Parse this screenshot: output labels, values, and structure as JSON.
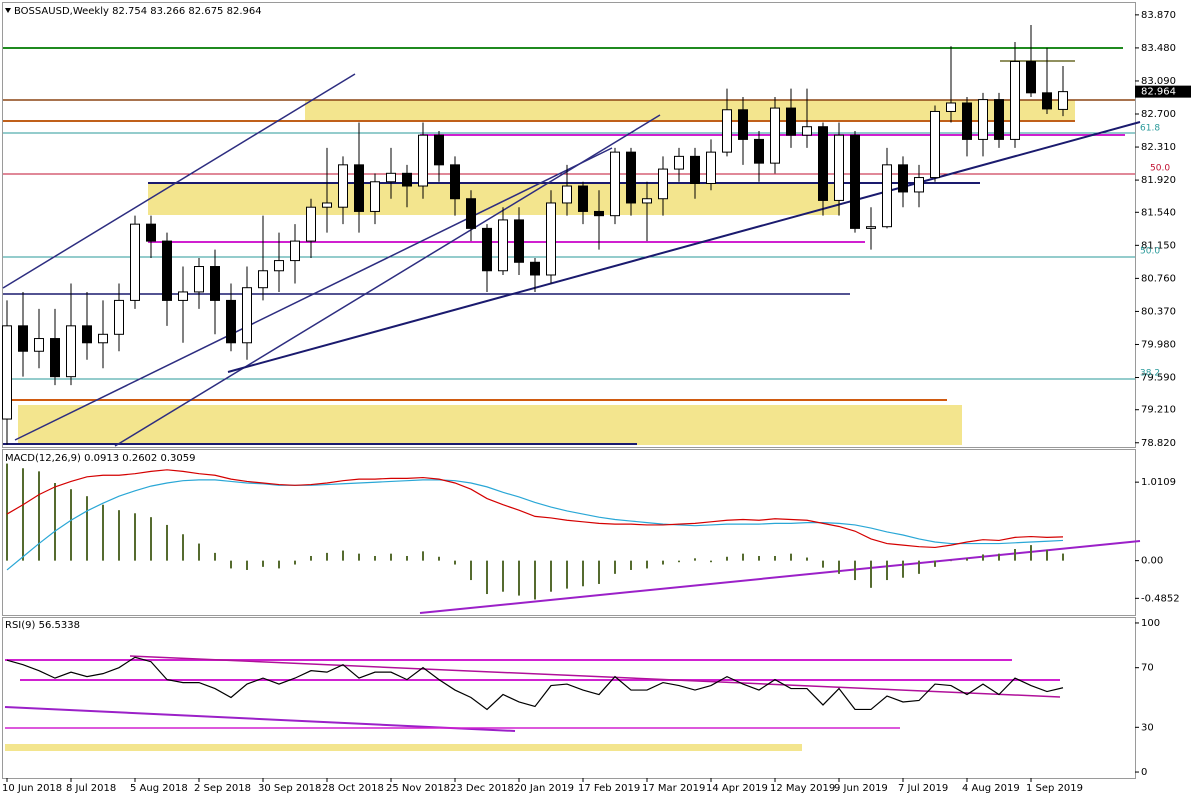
{
  "chart_data": [
    {
      "type": "candlestick",
      "title": "BOSSAUSD,Weekly  82.754 83.266 82.675 82.964",
      "categories": [
        "10 Jun 2018",
        null,
        null,
        null,
        "8 Jul 2018",
        null,
        null,
        null,
        "5 Aug 2018",
        null,
        null,
        null,
        "2 Sep 2018",
        null,
        null,
        null,
        "30 Sep 2018",
        null,
        null,
        null,
        "28 Oct 2018",
        null,
        null,
        null,
        "25 Nov 2018",
        null,
        null,
        null,
        "23 Dec 2018",
        null,
        null,
        null,
        "20 Jan 2019",
        null,
        null,
        null,
        "17 Feb 2019",
        null,
        null,
        null,
        "17 Mar 2019",
        null,
        null,
        null,
        "14 Apr 2019",
        null,
        null,
        null,
        "12 May 2019",
        null,
        null,
        null,
        "9 Jun 2019",
        null,
        null,
        null,
        "7 Jul 2019",
        null,
        null,
        null,
        "4 Aug 2019",
        null,
        null,
        null,
        "1 Sep 2019",
        null,
        null
      ],
      "open": [
        79.1,
        80.2,
        79.9,
        80.05,
        79.6,
        80.2,
        80.0,
        80.1,
        80.5,
        81.4,
        81.2,
        80.5,
        80.6,
        80.9,
        80.5,
        80.0,
        80.65,
        80.85,
        80.97,
        81.2,
        81.6,
        81.6,
        82.1,
        81.55,
        81.9,
        82.0,
        81.85,
        82.45,
        82.1,
        81.7,
        81.35,
        80.85,
        81.45,
        80.95,
        80.8,
        81.65,
        81.85,
        81.55,
        81.5,
        82.25,
        81.65,
        81.7,
        82.05,
        82.2,
        81.88,
        82.25,
        82.75,
        82.4,
        82.12,
        82.77,
        82.45,
        82.55,
        81.68,
        82.45,
        81.35,
        81.37,
        82.1,
        81.78,
        81.95,
        82.73,
        82.83,
        82.4,
        82.87,
        82.4,
        83.32,
        82.95,
        82.754
      ],
      "high": [
        80.5,
        80.6,
        80.4,
        80.4,
        80.7,
        80.6,
        80.5,
        80.7,
        81.5,
        81.5,
        81.3,
        80.9,
        81.0,
        81.1,
        80.7,
        80.9,
        81.5,
        81.3,
        81.4,
        81.7,
        82.3,
        82.2,
        82.6,
        82.0,
        82.3,
        82.1,
        82.6,
        82.5,
        82.2,
        81.8,
        81.4,
        81.6,
        81.6,
        81.0,
        81.8,
        82.1,
        81.9,
        81.8,
        82.3,
        82.3,
        81.9,
        82.2,
        82.3,
        82.3,
        82.4,
        83.0,
        82.9,
        82.5,
        82.9,
        83.0,
        83.0,
        82.6,
        82.6,
        82.5,
        81.6,
        82.3,
        82.2,
        82.1,
        82.8,
        83.5,
        82.9,
        82.95,
        82.95,
        83.55,
        83.75,
        83.48,
        83.266
      ],
      "low": [
        78.8,
        79.6,
        79.7,
        79.5,
        79.5,
        79.8,
        79.7,
        79.9,
        80.4,
        81.0,
        80.2,
        80.0,
        80.4,
        80.1,
        79.9,
        79.8,
        80.5,
        80.6,
        80.7,
        81.0,
        81.3,
        81.4,
        81.3,
        81.4,
        81.7,
        81.6,
        81.7,
        81.9,
        81.5,
        81.2,
        80.6,
        80.8,
        80.8,
        80.6,
        80.7,
        81.5,
        81.4,
        81.1,
        81.4,
        81.5,
        81.2,
        81.5,
        81.9,
        81.7,
        81.8,
        82.2,
        82.1,
        81.9,
        82.0,
        82.3,
        82.3,
        81.5,
        81.5,
        81.3,
        81.1,
        81.35,
        81.6,
        81.6,
        81.9,
        82.6,
        82.2,
        82.2,
        82.3,
        82.3,
        82.9,
        82.7,
        82.675
      ],
      "close": [
        80.2,
        79.9,
        80.05,
        79.6,
        80.2,
        80.0,
        80.1,
        80.5,
        81.4,
        81.2,
        80.5,
        80.6,
        80.9,
        80.5,
        80.0,
        80.65,
        80.85,
        80.97,
        81.2,
        81.6,
        81.65,
        82.1,
        81.55,
        81.9,
        82.0,
        81.85,
        82.45,
        82.1,
        81.7,
        81.35,
        80.85,
        81.45,
        80.95,
        80.8,
        81.65,
        81.85,
        81.55,
        81.5,
        82.25,
        81.65,
        81.7,
        82.05,
        82.2,
        81.88,
        82.25,
        82.75,
        82.4,
        82.12,
        82.77,
        82.45,
        82.55,
        81.68,
        82.45,
        81.35,
        81.37,
        82.1,
        81.78,
        81.95,
        82.73,
        82.83,
        82.4,
        82.87,
        82.4,
        83.32,
        82.95,
        82.76,
        82.964
      ],
      "color": "#000000",
      "ylim": [
        78.77,
        84.01
      ],
      "yticks": [
        {
          "value": 83.87,
          "label": "83.870"
        },
        {
          "value": 83.48,
          "label": "83.480"
        },
        {
          "value": 83.09,
          "label": "83.090"
        },
        {
          "value": 82.7,
          "label": "82.700"
        },
        {
          "value": 82.31,
          "label": "82.310"
        },
        {
          "value": 81.92,
          "label": "81.920"
        },
        {
          "value": 81.54,
          "label": "81.540"
        },
        {
          "value": 81.15,
          "label": "81.150"
        },
        {
          "value": 80.76,
          "label": "80.760"
        },
        {
          "value": 80.37,
          "label": "80.370"
        },
        {
          "value": 79.98,
          "label": "79.980"
        },
        {
          "value": 79.59,
          "label": "79.590"
        },
        {
          "value": 79.21,
          "label": "79.210"
        },
        {
          "value": 78.82,
          "label": "78.820"
        }
      ],
      "last_price": 82.964,
      "fib_labels": [
        "61.8",
        "50.0",
        "50.0",
        "38.2"
      ]
    },
    {
      "type": "macd",
      "title": "MACD(12,26,9) 0.0913 0.2602 0.3059",
      "series": [
        {
          "color": "#556b2f",
          "values": [
            1.25,
            1.19,
            1.15,
            1.0,
            0.92,
            0.83,
            0.72,
            0.65,
            0.61,
            0.56,
            0.46,
            0.34,
            0.22,
            0.1,
            -0.1,
            -0.12,
            -0.08,
            -0.1,
            -0.05,
            0.06,
            0.1,
            0.13,
            0.09,
            0.06,
            0.09,
            0.06,
            0.12,
            0.05,
            -0.05,
            -0.25,
            -0.43,
            -0.4,
            -0.45,
            -0.5,
            -0.4,
            -0.36,
            -0.33,
            -0.3,
            -0.17,
            -0.12,
            -0.1,
            -0.05,
            -0.02,
            0.03,
            -0.02,
            0.05,
            0.09,
            0.06,
            0.06,
            0.09,
            0.04,
            -0.09,
            -0.17,
            -0.25,
            -0.35,
            -0.25,
            -0.22,
            -0.17,
            -0.08,
            0.0,
            0.03,
            0.08,
            0.09,
            0.15,
            0.2,
            0.14,
            0.0913
          ]
        },
        {
          "color": "#2aa7d6",
          "values": [
            -0.12,
            0.05,
            0.22,
            0.38,
            0.52,
            0.64,
            0.74,
            0.83,
            0.9,
            0.96,
            1.0,
            1.03,
            1.04,
            1.04,
            1.02,
            1.0,
            0.99,
            0.97,
            0.97,
            0.97,
            0.98,
            0.99,
            1.0,
            1.01,
            1.02,
            1.03,
            1.04,
            1.04,
            1.03,
            1.0,
            0.95,
            0.88,
            0.82,
            0.75,
            0.69,
            0.64,
            0.6,
            0.56,
            0.53,
            0.51,
            0.49,
            0.47,
            0.46,
            0.45,
            0.46,
            0.47,
            0.47,
            0.47,
            0.48,
            0.48,
            0.49,
            0.49,
            0.48,
            0.46,
            0.42,
            0.37,
            0.33,
            0.28,
            0.24,
            0.22,
            0.22,
            0.22,
            0.22,
            0.23,
            0.24,
            0.25,
            0.2602
          ]
        },
        {
          "color": "#d40000",
          "values": [
            0.6,
            0.72,
            0.85,
            0.95,
            1.02,
            1.08,
            1.1,
            1.1,
            1.12,
            1.15,
            1.17,
            1.15,
            1.12,
            1.1,
            1.05,
            1.02,
            1.0,
            0.98,
            0.97,
            0.98,
            1.0,
            1.03,
            1.05,
            1.05,
            1.06,
            1.06,
            1.07,
            1.05,
            1.0,
            0.92,
            0.8,
            0.72,
            0.65,
            0.57,
            0.55,
            0.52,
            0.5,
            0.48,
            0.47,
            0.47,
            0.46,
            0.46,
            0.47,
            0.48,
            0.5,
            0.52,
            0.53,
            0.52,
            0.54,
            0.53,
            0.52,
            0.48,
            0.44,
            0.38,
            0.28,
            0.22,
            0.2,
            0.18,
            0.17,
            0.2,
            0.24,
            0.27,
            0.26,
            0.3,
            0.31,
            0.3,
            0.3059
          ]
        }
      ],
      "ylim": [
        -0.7,
        1.425
      ],
      "yticks": [
        1.0109,
        {
          "value": 0,
          "label": "0.00"
        },
        -0.4852
      ]
    },
    {
      "type": "line",
      "title": "RSI(9) 56.5338",
      "series": [
        {
          "color": "#000000",
          "values": [
            75,
            72,
            68,
            63,
            67,
            64,
            66,
            70,
            77,
            74,
            62,
            60,
            60,
            56,
            50,
            59,
            63,
            59,
            63,
            68,
            67,
            72,
            63,
            67,
            67,
            62,
            70,
            62,
            55,
            50,
            42,
            52,
            47,
            44,
            58,
            59,
            55,
            52,
            64,
            55,
            55,
            60,
            58,
            55,
            58,
            64,
            59,
            55,
            62,
            56,
            56,
            45,
            56,
            42,
            42,
            51,
            47,
            48,
            59,
            58,
            52,
            59,
            52,
            63,
            58,
            54,
            56.5338
          ]
        }
      ],
      "ylim": [
        -4,
        104
      ],
      "yticks": [
        100,
        70,
        30,
        0
      ]
    }
  ]
}
